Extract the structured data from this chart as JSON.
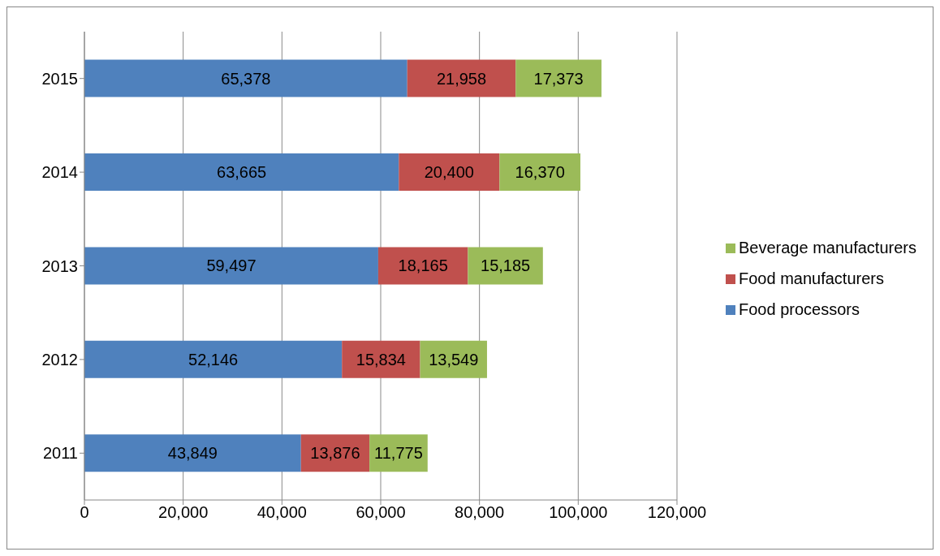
{
  "chart_data": {
    "type": "bar",
    "orientation": "horizontal",
    "stacked": true,
    "categories": [
      "2015",
      "2014",
      "2013",
      "2012",
      "2011"
    ],
    "series": [
      {
        "name": "Food processors",
        "color": "#4f81bd",
        "values": [
          65378,
          63665,
          59497,
          52146,
          43849
        ],
        "value_labels": [
          "65,378",
          "63,665",
          "59,497",
          "52,146",
          "43,849"
        ]
      },
      {
        "name": "Food manufacturers",
        "color": "#c0504d",
        "values": [
          21958,
          20400,
          18165,
          15834,
          13876
        ],
        "value_labels": [
          "21,958",
          "20,400",
          "18,165",
          "15,834",
          "13,876"
        ]
      },
      {
        "name": "Beverage manufacturers",
        "color": "#9bbb59",
        "values": [
          17373,
          16370,
          15185,
          13549,
          11775
        ],
        "value_labels": [
          "17,373",
          "16,370",
          "15,185",
          "13,549",
          "11,775"
        ]
      }
    ],
    "xlim": [
      0,
      120000
    ],
    "xticks": [
      0,
      {
        "value": 20000,
        "label": "20,000"
      },
      {
        "value": 40000,
        "label": "40,000"
      },
      {
        "value": 60000,
        "label": "60,000"
      },
      {
        "value": 80000,
        "label": "80,000"
      },
      {
        "value": 100000,
        "label": "100,000"
      },
      {
        "value": 120000,
        "label": "120,000"
      }
    ],
    "grid": "x",
    "legend": "right"
  }
}
